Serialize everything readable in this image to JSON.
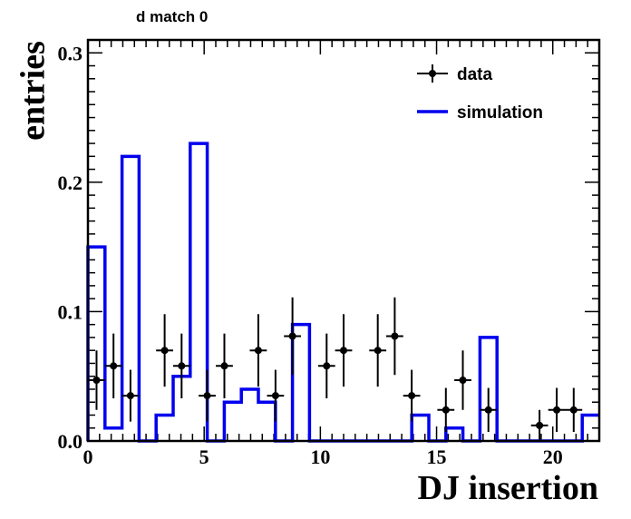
{
  "chart_data": {
    "type": "histogram",
    "title": "d match 0",
    "xlabel": "DJ insertion",
    "ylabel": "entries",
    "xlim": [
      0,
      22
    ],
    "ylim": [
      0,
      0.31
    ],
    "xticks": [
      0,
      5,
      10,
      15,
      20
    ],
    "xtick_labels": [
      "0",
      "5",
      "10",
      "15",
      "20"
    ],
    "yticks": [
      0,
      0.1,
      0.2,
      0.3
    ],
    "ytick_labels": [
      "0.0",
      "0.1",
      "0.2",
      "0.3"
    ],
    "legend": {
      "placement": "top-right",
      "entries": [
        "data",
        "simulation"
      ]
    },
    "grid": false,
    "bin_width": 0.733,
    "series": [
      {
        "name": "data",
        "kind": "points-with-errors",
        "color": "#000000",
        "x": [
          0.37,
          1.1,
          1.83,
          3.3,
          4.03,
          5.13,
          5.87,
          7.33,
          8.07,
          8.8,
          10.27,
          11.0,
          12.47,
          13.2,
          13.93,
          15.4,
          16.13,
          17.23,
          19.43,
          20.17,
          20.9
        ],
        "y": [
          0.047,
          0.058,
          0.035,
          0.07,
          0.058,
          0.035,
          0.058,
          0.07,
          0.035,
          0.081,
          0.058,
          0.07,
          0.07,
          0.081,
          0.035,
          0.024,
          0.047,
          0.024,
          0.012,
          0.024,
          0.024
        ],
        "err": [
          0.023,
          0.025,
          0.02,
          0.028,
          0.025,
          0.02,
          0.025,
          0.028,
          0.02,
          0.03,
          0.025,
          0.028,
          0.028,
          0.03,
          0.02,
          0.017,
          0.023,
          0.017,
          0.012,
          0.017,
          0.017
        ]
      },
      {
        "name": "simulation",
        "kind": "step",
        "color": "#0000ee",
        "edges": [
          0,
          0.733,
          1.467,
          2.2,
          2.933,
          3.667,
          4.4,
          5.133,
          5.867,
          6.6,
          7.333,
          8.067,
          8.8,
          9.533,
          10.267,
          11.0,
          11.733,
          12.467,
          13.2,
          13.933,
          14.667,
          15.4,
          16.133,
          16.867,
          17.6,
          18.333,
          19.067,
          19.8,
          20.533,
          21.267,
          22.0
        ],
        "values": [
          0.15,
          0.01,
          0.22,
          0,
          0.02,
          0.05,
          0.23,
          0,
          0.03,
          0.04,
          0.03,
          0,
          0.09,
          0,
          0,
          0,
          0,
          0,
          0,
          0.02,
          0,
          0.01,
          0,
          0.08,
          0,
          0,
          0,
          0,
          0,
          0.02
        ]
      }
    ]
  }
}
